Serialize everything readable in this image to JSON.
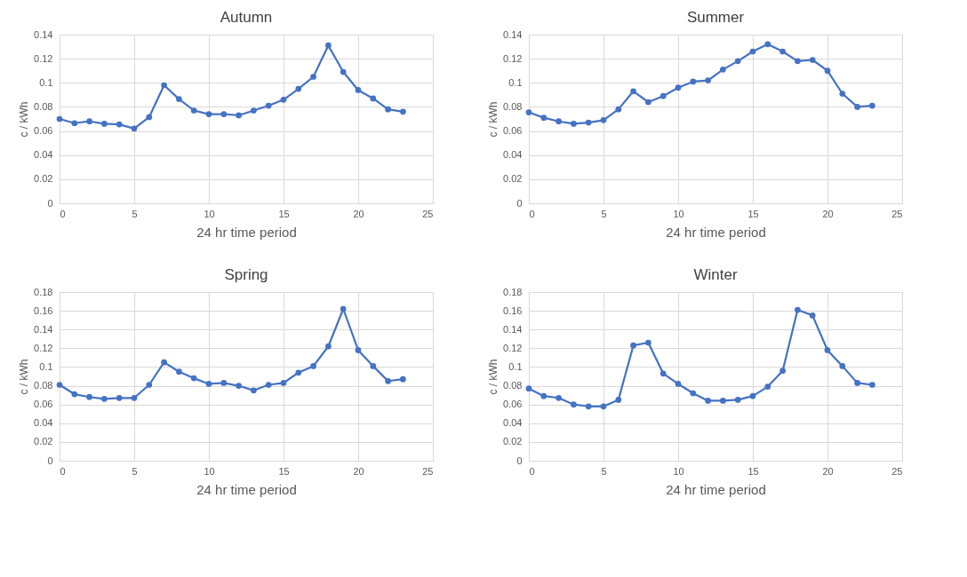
{
  "chart_data": [
    {
      "type": "line",
      "title": "Autumn",
      "xlabel": "24 hr time period",
      "ylabel": "c / kWh",
      "grid": true,
      "marker": "circle",
      "xlim": [
        0,
        25
      ],
      "xticks": [
        0,
        5,
        10,
        15,
        20,
        25
      ],
      "ylim": [
        0,
        0.14
      ],
      "yticks": [
        0,
        0.02,
        0.04,
        0.06,
        0.08,
        0.1,
        0.12,
        0.14
      ],
      "x": [
        0,
        1,
        2,
        3,
        4,
        5,
        6,
        7,
        8,
        9,
        10,
        11,
        12,
        13,
        14,
        15,
        16,
        17,
        18,
        19,
        20,
        21,
        22,
        23
      ],
      "series": [
        {
          "color": "#4472c4",
          "values": [
            0.07,
            0.0665,
            0.068,
            0.066,
            0.0655,
            0.062,
            0.0715,
            0.098,
            0.0865,
            0.077,
            0.074,
            0.074,
            0.073,
            0.077,
            0.081,
            0.086,
            0.095,
            0.105,
            0.131,
            0.109,
            0.094,
            0.087,
            0.078,
            0.076
          ]
        }
      ]
    },
    {
      "type": "line",
      "title": "Summer",
      "xlabel": "24 hr time period",
      "ylabel": "c / kWh",
      "grid": true,
      "marker": "circle",
      "xlim": [
        0,
        25
      ],
      "xticks": [
        0,
        5,
        10,
        15,
        20,
        25
      ],
      "ylim": [
        0,
        0.14
      ],
      "yticks": [
        0,
        0.02,
        0.04,
        0.06,
        0.08,
        0.1,
        0.12,
        0.14
      ],
      "x": [
        0,
        1,
        2,
        3,
        4,
        5,
        6,
        7,
        8,
        9,
        10,
        11,
        12,
        13,
        14,
        15,
        16,
        17,
        18,
        19,
        20,
        21,
        22,
        23
      ],
      "series": [
        {
          "color": "#4472c4",
          "values": [
            0.0755,
            0.071,
            0.068,
            0.066,
            0.067,
            0.069,
            0.078,
            0.093,
            0.084,
            0.089,
            0.096,
            0.101,
            0.102,
            0.111,
            0.118,
            0.126,
            0.132,
            0.126,
            0.118,
            0.119,
            0.11,
            0.091,
            0.08,
            0.081
          ]
        }
      ]
    },
    {
      "type": "line",
      "title": "Spring",
      "xlabel": "24 hr time period",
      "ylabel": "c / kWh",
      "grid": true,
      "marker": "circle",
      "xlim": [
        0,
        25
      ],
      "xticks": [
        0,
        5,
        10,
        15,
        20,
        25
      ],
      "ylim": [
        0,
        0.18
      ],
      "yticks": [
        0,
        0.02,
        0.04,
        0.06,
        0.08,
        0.1,
        0.12,
        0.14,
        0.16,
        0.18
      ],
      "x": [
        0,
        1,
        2,
        3,
        4,
        5,
        6,
        7,
        8,
        9,
        10,
        11,
        12,
        13,
        14,
        15,
        16,
        17,
        18,
        19,
        20,
        21,
        22,
        23
      ],
      "series": [
        {
          "color": "#4472c4",
          "values": [
            0.081,
            0.071,
            0.068,
            0.066,
            0.067,
            0.067,
            0.081,
            0.105,
            0.095,
            0.088,
            0.082,
            0.083,
            0.08,
            0.075,
            0.081,
            0.083,
            0.094,
            0.101,
            0.122,
            0.162,
            0.118,
            0.101,
            0.085,
            0.087
          ]
        }
      ]
    },
    {
      "type": "line",
      "title": "Winter",
      "xlabel": "24 hr time period",
      "ylabel": "c / kWh",
      "grid": true,
      "marker": "circle",
      "xlim": [
        0,
        25
      ],
      "xticks": [
        0,
        5,
        10,
        15,
        20,
        25
      ],
      "ylim": [
        0,
        0.18
      ],
      "yticks": [
        0,
        0.02,
        0.04,
        0.06,
        0.08,
        0.1,
        0.12,
        0.14,
        0.16,
        0.18
      ],
      "x": [
        0,
        1,
        2,
        3,
        4,
        5,
        6,
        7,
        8,
        9,
        10,
        11,
        12,
        13,
        14,
        15,
        16,
        17,
        18,
        19,
        20,
        21,
        22,
        23
      ],
      "series": [
        {
          "color": "#4472c4",
          "values": [
            0.077,
            0.069,
            0.067,
            0.06,
            0.058,
            0.058,
            0.065,
            0.123,
            0.126,
            0.093,
            0.082,
            0.072,
            0.064,
            0.064,
            0.065,
            0.069,
            0.079,
            0.096,
            0.161,
            0.155,
            0.118,
            0.101,
            0.083,
            0.081
          ]
        }
      ]
    }
  ]
}
